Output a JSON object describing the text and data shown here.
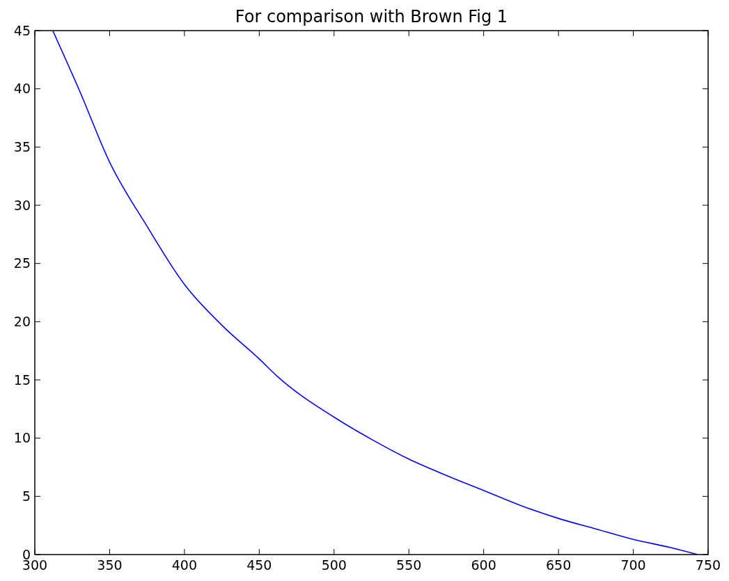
{
  "chart_data": {
    "type": "line",
    "title": "For comparison with Brown Fig 1",
    "series": [
      {
        "color": "#0000ff",
        "x": [
          312,
          330,
          350,
          375,
          400,
          425,
          450,
          463,
          500,
          525,
          550,
          575,
          600,
          625,
          650,
          675,
          700,
          725,
          743
        ],
        "values": [
          45,
          39.8,
          33.7,
          28.2,
          23.2,
          19.7,
          16.8,
          15.2,
          11.8,
          9.9,
          8.2,
          6.8,
          5.5,
          4.2,
          3.1,
          2.2,
          1.3,
          0.6,
          0
        ]
      }
    ],
    "xlim": [
      300,
      750
    ],
    "xticks": [
      300,
      350,
      400,
      450,
      500,
      550,
      600,
      650,
      700,
      750
    ],
    "ylim": [
      0,
      45
    ],
    "yticks": [
      0,
      5,
      10,
      15,
      20,
      25,
      30,
      35,
      40,
      45
    ],
    "grid": false,
    "marker": "none",
    "line_style": "solid"
  }
}
